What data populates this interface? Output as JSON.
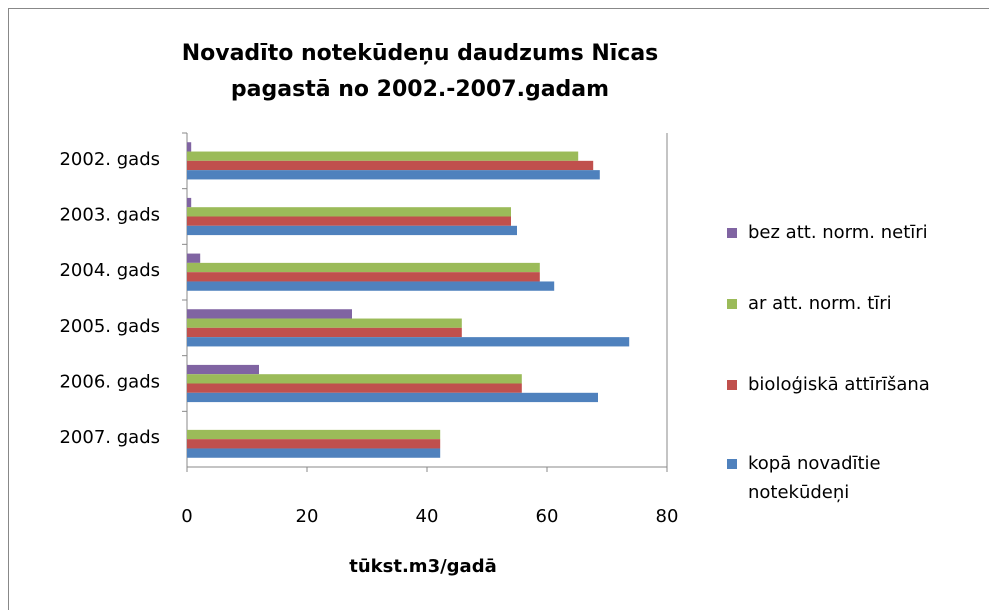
{
  "chart_data": {
    "type": "bar",
    "orientation": "horizontal",
    "title": "Novadīto notekūdeņu daudzums Nīcas pagastā no 2002.-2007.gadam",
    "x_label": "tūkst.m3/gadā",
    "categories": [
      "2002. gads",
      "2003. gads",
      "2004. gads",
      "2005. gads",
      "2006. gads",
      "2007. gads"
    ],
    "series": [
      {
        "name": "bez att. norm. netīri",
        "color": "#8064a2",
        "values": [
          0.7,
          0.7,
          2.2,
          27.5,
          12,
          0
        ]
      },
      {
        "name": "ar att. norm. tīri",
        "color": "#9bbb59",
        "values": [
          65.2,
          54,
          58.8,
          45.8,
          55.8,
          42.2
        ]
      },
      {
        "name": "bioloģiskā attīrīšana",
        "color": "#c0504d",
        "values": [
          67.7,
          54,
          58.8,
          45.8,
          55.8,
          42.2
        ]
      },
      {
        "name": "kopā novadītie notekūdeņi",
        "color": "#4f81bd",
        "values": [
          68.8,
          55,
          61.2,
          73.7,
          68.5,
          42.2
        ]
      }
    ],
    "xlim": [
      0,
      80
    ],
    "xticks": [
      0,
      20,
      40,
      60,
      80
    ],
    "grid": false,
    "legend": "right"
  }
}
